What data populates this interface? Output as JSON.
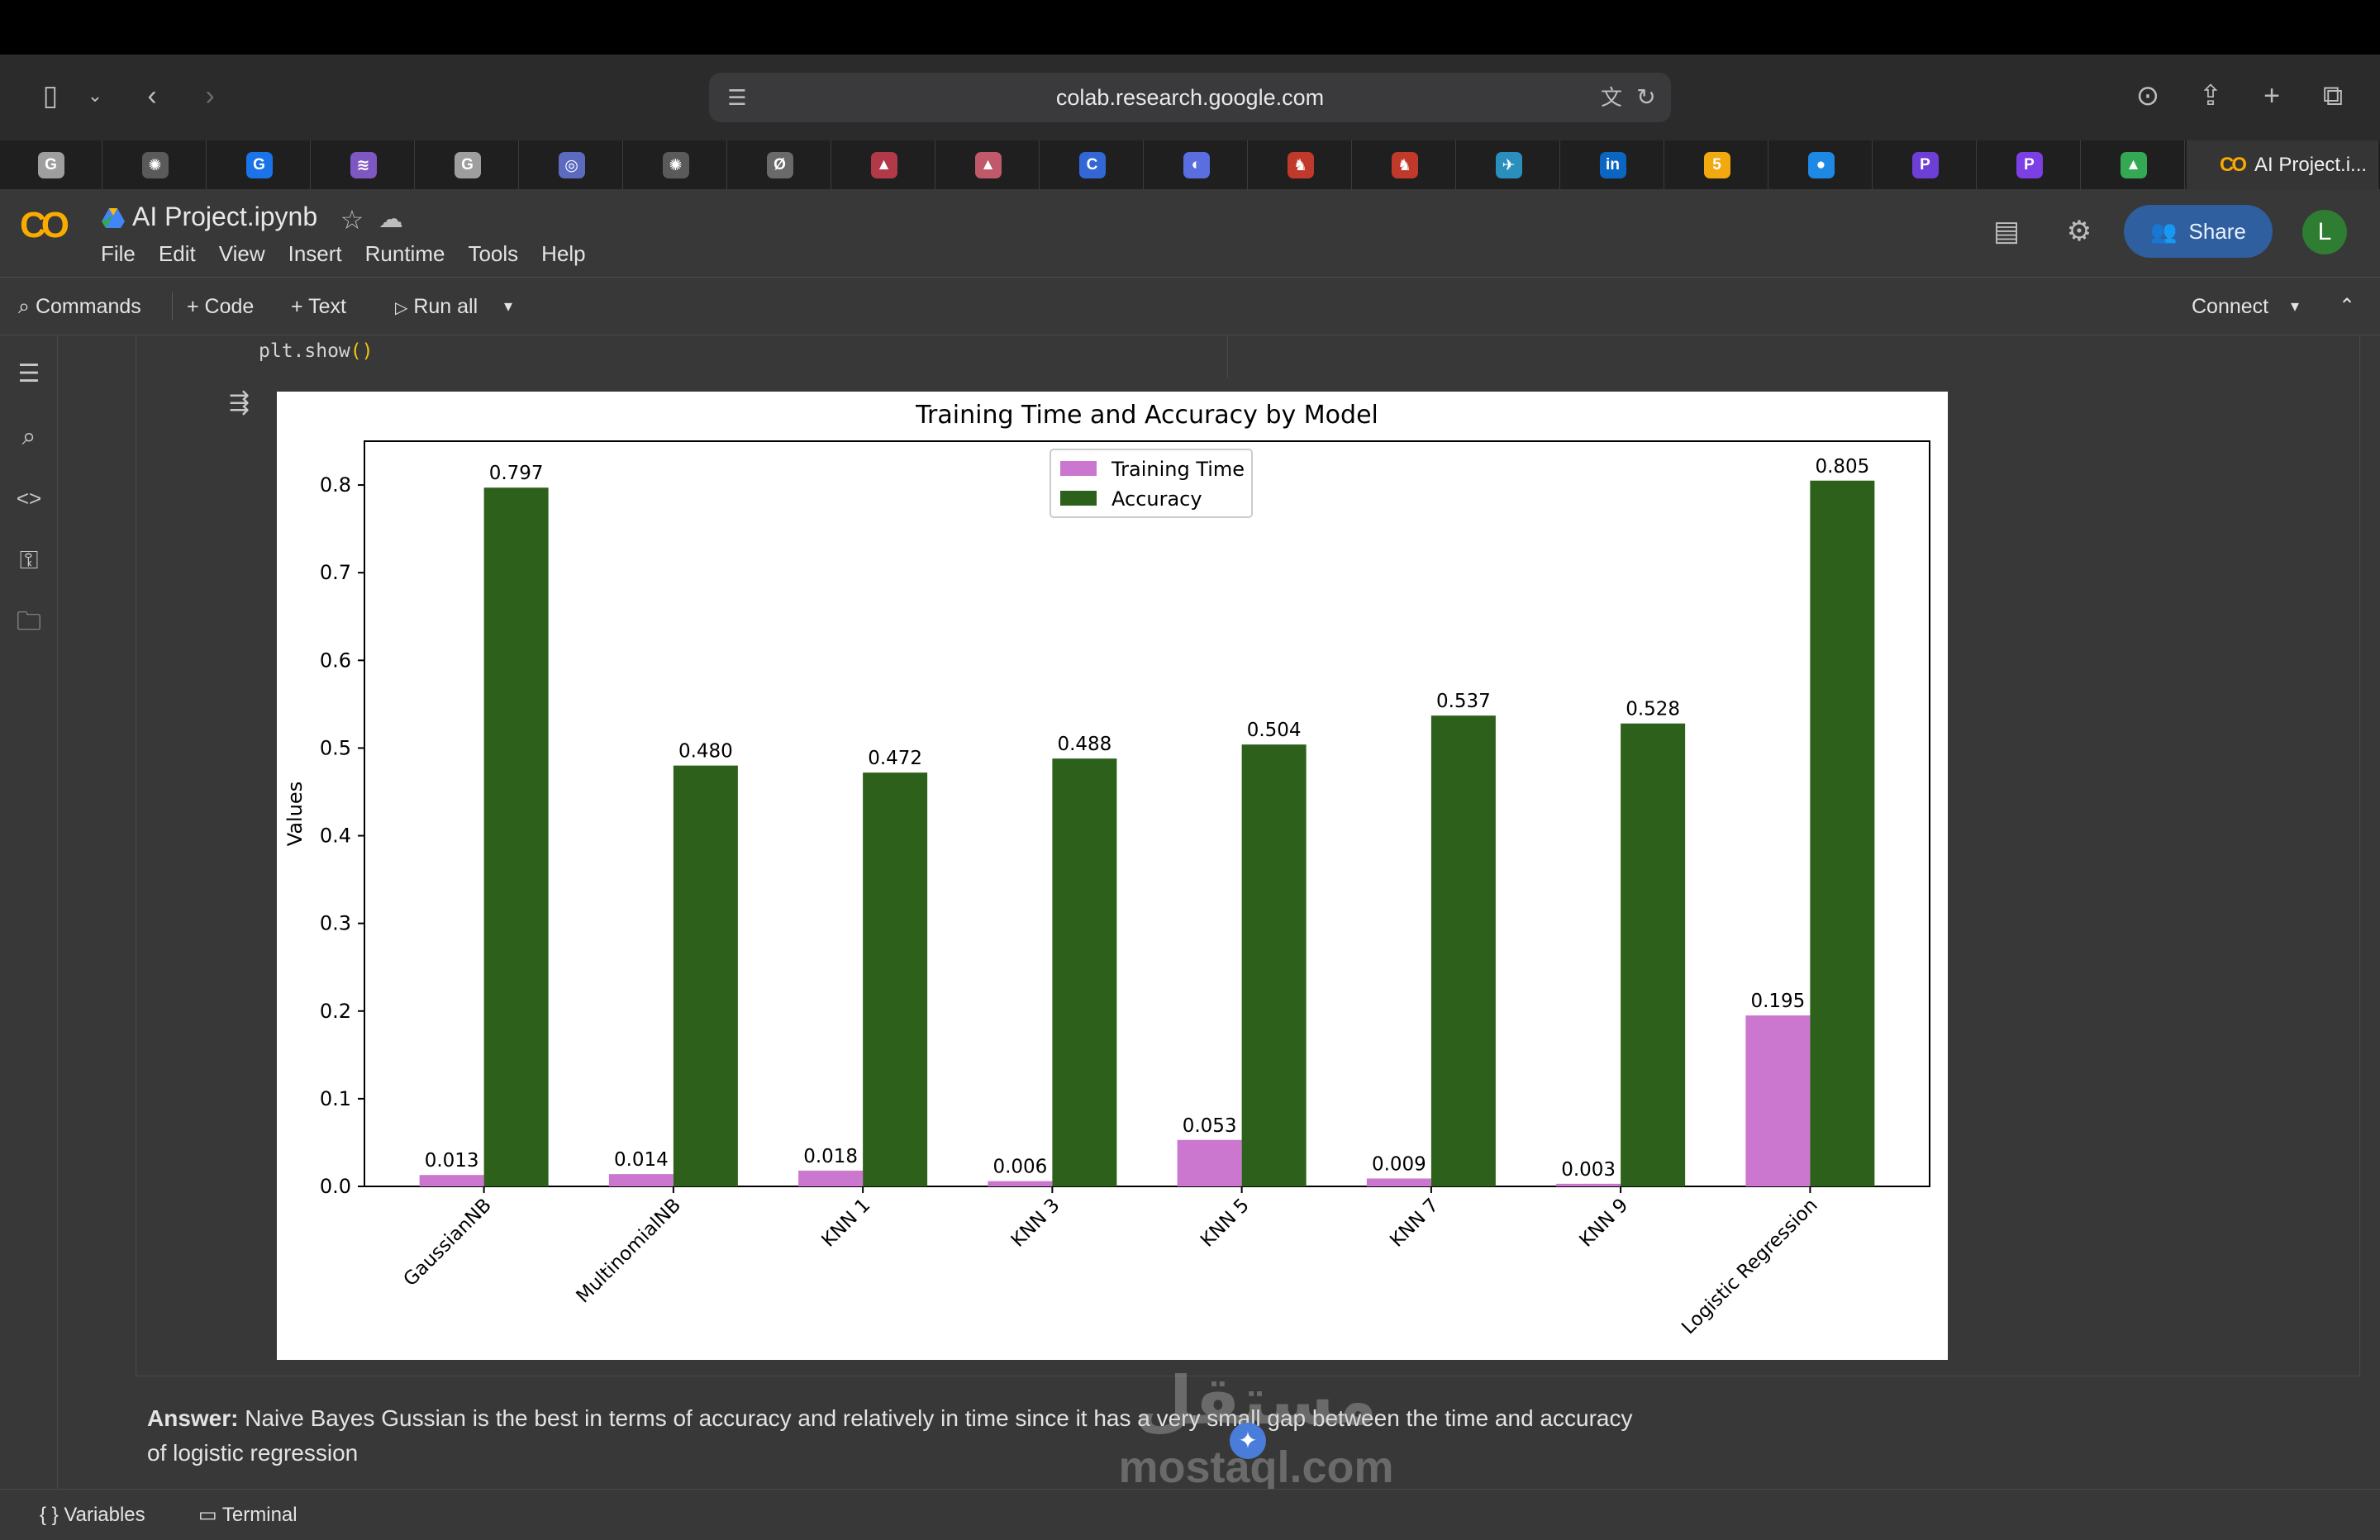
{
  "browser": {
    "url": "colab.research.google.com",
    "tabs": [
      {
        "icon": "google-icon",
        "letter": "G",
        "color": "#9e9e9e"
      },
      {
        "icon": "chatgpt-icon",
        "letter": "✺",
        "color": "#5a5a5a"
      },
      {
        "icon": "grammarly-icon",
        "letter": "G",
        "color": "#1a73e8"
      },
      {
        "icon": "app-icon",
        "letter": "≋",
        "color": "#7e57c2"
      },
      {
        "icon": "google-icon",
        "letter": "G",
        "color": "#9e9e9e"
      },
      {
        "icon": "app-icon",
        "letter": "◎",
        "color": "#5c6bc0"
      },
      {
        "icon": "chatgpt-icon",
        "letter": "✺",
        "color": "#5a5a5a"
      },
      {
        "icon": "app-icon",
        "letter": "Ø",
        "color": "#6a6a6a"
      },
      {
        "icon": "app-icon",
        "letter": "▲",
        "color": "#b23a48"
      },
      {
        "icon": "app-icon",
        "letter": "▲",
        "color": "#c05a6a"
      },
      {
        "icon": "app-icon",
        "letter": "C",
        "color": "#3367d6"
      },
      {
        "icon": "app-icon",
        "letter": "◐",
        "color": "#5b6ee1"
      },
      {
        "icon": "app-icon",
        "letter": "♞",
        "color": "#c0392b"
      },
      {
        "icon": "app-icon",
        "letter": "♞",
        "color": "#c0392b"
      },
      {
        "icon": "app-icon",
        "letter": "✈",
        "color": "#2a8fbd"
      },
      {
        "icon": "linkedin-icon",
        "letter": "in",
        "color": "#0a66c2"
      },
      {
        "icon": "app-icon",
        "letter": "5",
        "color": "#f1a90f"
      },
      {
        "icon": "app-icon",
        "letter": "●",
        "color": "#1e88e5"
      },
      {
        "icon": "app-icon",
        "letter": "P",
        "color": "#6d3fd6"
      },
      {
        "icon": "app-icon",
        "letter": "P",
        "color": "#7b3fe4"
      },
      {
        "icon": "drive-icon",
        "letter": "▲",
        "color": "#34a853"
      }
    ],
    "active_tab": {
      "title": "AI Project.i...",
      "icon": "colab-icon"
    }
  },
  "colab": {
    "logo_text": "CO",
    "notebook_title": "AI Project.ipynb",
    "menu": [
      "File",
      "Edit",
      "View",
      "Insert",
      "Runtime",
      "Tools",
      "Help"
    ],
    "share_label": "Share",
    "avatar_letter": "L",
    "toolbar": {
      "commands": "Commands",
      "add_code": "+ Code",
      "add_text": "+ Text",
      "run_all": "Run all",
      "connect": "Connect"
    }
  },
  "cell": {
    "code_line_prefix": "plt.show",
    "code_line_parens": "()"
  },
  "chart_data": {
    "type": "bar",
    "title": "Training Time and Accuracy by Model",
    "xlabel": "",
    "ylabel": "Values",
    "ylim": [
      0,
      0.85
    ],
    "yticks": [
      "0.0",
      "0.1",
      "0.2",
      "0.3",
      "0.4",
      "0.5",
      "0.6",
      "0.7",
      "0.8"
    ],
    "categories": [
      "GaussianNB",
      "MultinomialNB",
      "KNN 1",
      "KNN 3",
      "KNN 5",
      "KNN 7",
      "KNN 9",
      "Logistic Regression"
    ],
    "series": [
      {
        "name": "Training Time",
        "color": "#cc77cf",
        "values": [
          0.013,
          0.014,
          0.018,
          0.006,
          0.053,
          0.009,
          0.003,
          0.195
        ],
        "labels": [
          "0.013",
          "0.014",
          "0.018",
          "0.006",
          "0.053",
          "0.009",
          "0.003",
          "0.195"
        ]
      },
      {
        "name": "Accuracy",
        "color": "#2c601b",
        "values": [
          0.797,
          0.48,
          0.472,
          0.488,
          0.504,
          0.537,
          0.528,
          0.805
        ],
        "labels": [
          "0.797",
          "0.480",
          "0.472",
          "0.488",
          "0.504",
          "0.537",
          "0.528",
          "0.805"
        ]
      }
    ],
    "legend": "top-center",
    "grid": false
  },
  "answer": {
    "label": "Answer:",
    "text": " Naive Bayes Gussian is the best in terms of accuracy and relatively in time since it has a very small gap between the time and accuracy of logistic regression"
  },
  "watermark": {
    "arabic": "مستقل",
    "latin": "mostaql.com"
  },
  "statusbar": {
    "variables": "Variables",
    "terminal": "Terminal"
  }
}
